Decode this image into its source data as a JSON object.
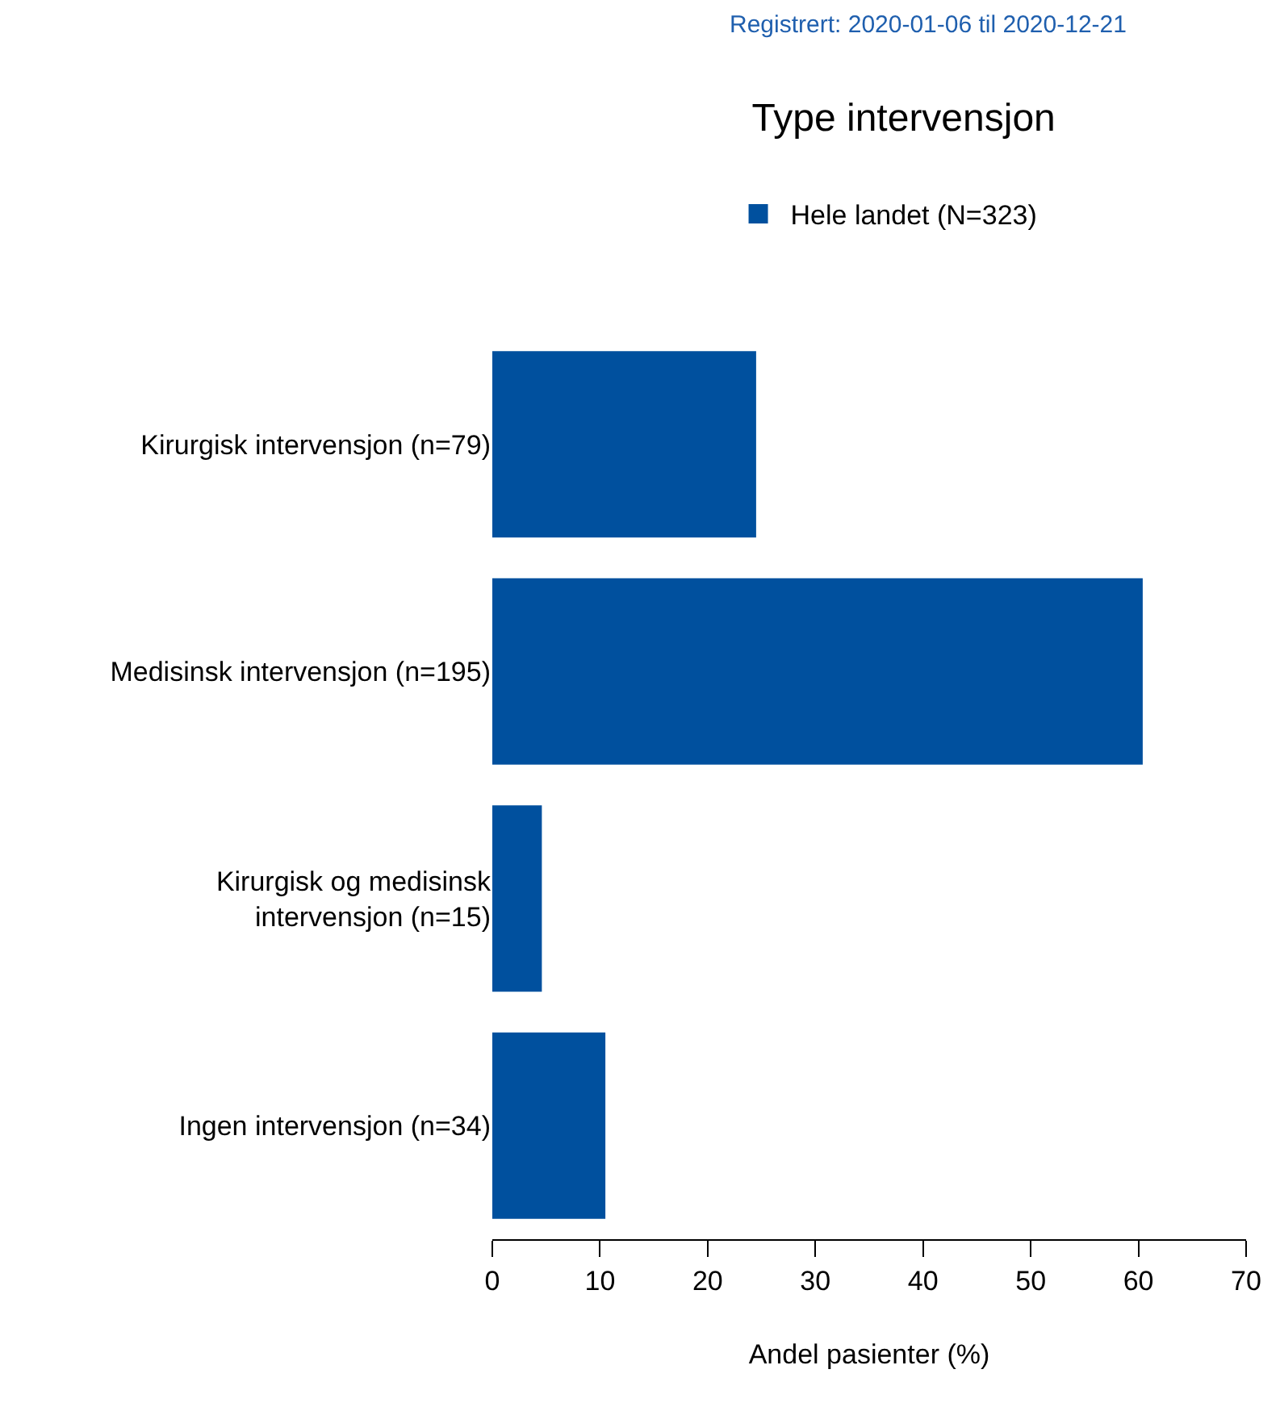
{
  "chart_data": {
    "type": "bar",
    "orientation": "horizontal",
    "title": "Type intervensjon",
    "subtitle": "Registrert: 2020-01-06 til 2020-12-21",
    "xlabel": "Andel pasienter (%)",
    "categories": [
      "Kirurgisk intervensjon (n=79)",
      "Medisinsk intervensjon (n=195)",
      "Kirurgisk og medisinsk\nintervensjon (n=15)",
      "Ingen intervensjon (n=34)"
    ],
    "series": [
      {
        "name": "Hele landet (N=323)",
        "color": "#00509e",
        "values": [
          24.5,
          60.4,
          4.6,
          10.5
        ]
      }
    ],
    "xlim": [
      0,
      70
    ],
    "xticks": [
      0,
      10,
      20,
      30,
      40,
      50,
      60,
      70
    ],
    "legend": "top"
  }
}
